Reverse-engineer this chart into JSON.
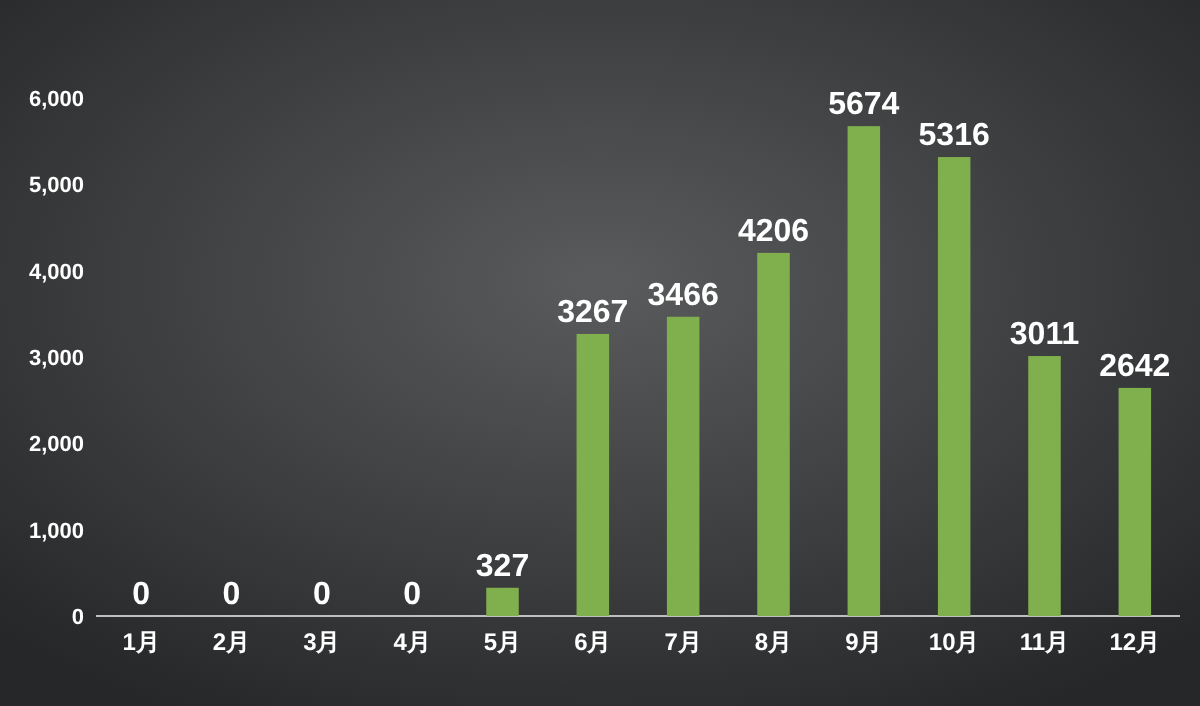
{
  "chart_data": {
    "type": "bar",
    "categories": [
      "1月",
      "2月",
      "3月",
      "4月",
      "5月",
      "6月",
      "7月",
      "8月",
      "9月",
      "10月",
      "11月",
      "12月"
    ],
    "values": [
      0,
      0,
      0,
      0,
      327,
      3267,
      3466,
      4206,
      5674,
      5316,
      3011,
      2642
    ],
    "color": "#80b04e",
    "ylim": [
      0,
      6000
    ],
    "yticks": [
      0,
      {
        "value": 1000,
        "label": "1,000"
      },
      {
        "value": 2000,
        "label": "2,000"
      },
      {
        "value": 3000,
        "label": "3,000"
      },
      {
        "value": 4000,
        "label": "4,000"
      },
      {
        "value": 5000,
        "label": "5,000"
      },
      {
        "value": 6000,
        "label": "6,000"
      }
    ],
    "data_labels": true,
    "grid": false
  }
}
